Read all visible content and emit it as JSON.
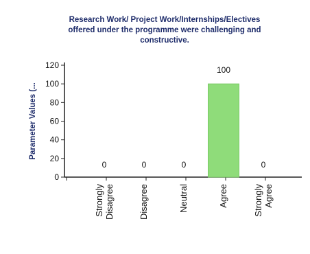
{
  "chart_data": {
    "type": "bar",
    "title_lines": [
      "Research Work/ Project Work/Internships/Electives",
      "offered under the programme were challenging and",
      "constructive."
    ],
    "ylabel": "Parameter Values (...",
    "xlabel": "",
    "categories": [
      [
        "Strongly",
        "Disagree"
      ],
      [
        "Disagree"
      ],
      [
        "Neutral"
      ],
      [
        "Agree"
      ],
      [
        "Strongly",
        "Agree"
      ]
    ],
    "values": [
      0,
      0,
      0,
      100,
      0
    ],
    "data_labels": [
      "0",
      "0",
      "0",
      "100",
      "0"
    ],
    "ylim": [
      0,
      120
    ],
    "yticks": [
      0,
      20,
      40,
      60,
      80,
      100,
      120
    ],
    "grid": false,
    "legend": "none",
    "colors": {
      "bar": "#8fdc7a",
      "bar_edge": "#78c964",
      "title": "#1f2d6b",
      "axis": "#222222"
    }
  }
}
